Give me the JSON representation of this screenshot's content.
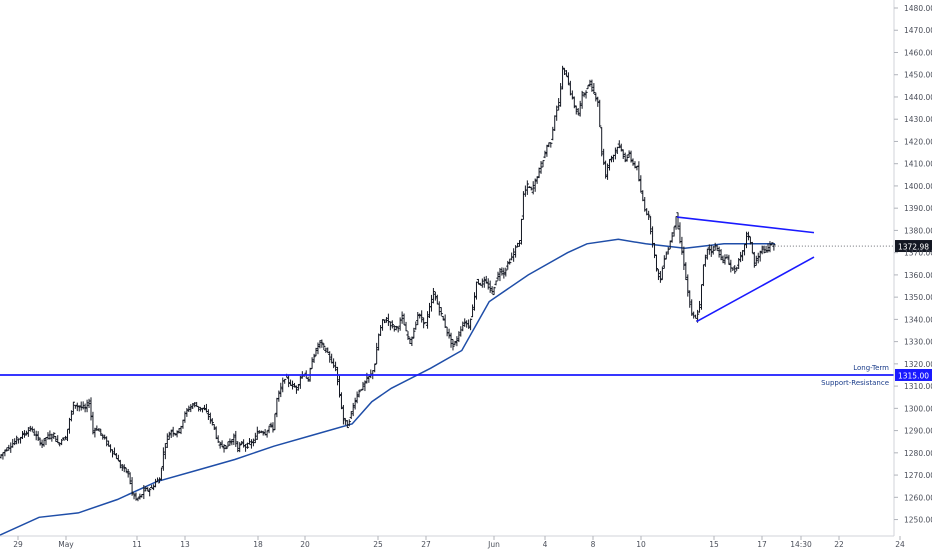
{
  "chart_data": {
    "type": "candlestick",
    "y_axis": {
      "min": 1245,
      "max": 1482,
      "ticks": [
        "1480.00",
        "1470.00",
        "1460.00",
        "1450.00",
        "1440.00",
        "1430.00",
        "1420.00",
        "1410.00",
        "1400.00",
        "1390.00",
        "1380.00",
        "1370.00",
        "1360.00",
        "1350.00",
        "1340.00",
        "1330.00",
        "1320.00",
        "1310.00",
        "1300.00",
        "1290.00",
        "1280.00",
        "1270.00",
        "1260.00",
        "1250.00"
      ],
      "tick_values": [
        1480,
        1470,
        1460,
        1450,
        1440,
        1430,
        1420,
        1410,
        1400,
        1390,
        1380,
        1370,
        1360,
        1350,
        1340,
        1330,
        1320,
        1310,
        1300,
        1290,
        1280,
        1270,
        1260,
        1250
      ],
      "last_price_label": "1372.98",
      "last_price": 1372.98,
      "level_label": "1315.00",
      "level": 1315
    },
    "x_axis": {
      "labels": [
        "29",
        "May",
        "11",
        "13",
        "18",
        "20",
        "25",
        "27",
        "Jun",
        "4",
        "8",
        "10",
        "15",
        "17",
        "14:30",
        "22",
        "24"
      ]
    },
    "colors": {
      "bars": "#131722",
      "moving_average": "#1f4ea8",
      "trendlines": "#1a1aff",
      "support_line": "#1a1aff",
      "last_price_bg": "#131722",
      "level_bg": "#1a1aff",
      "annotation_text": "#1a3c8a"
    },
    "annotation": {
      "line1": "Long-Term",
      "line2": "Support-Resistance"
    },
    "price_path": [
      [
        0,
        1278
      ],
      [
        2,
        1282
      ],
      [
        4,
        1285
      ],
      [
        6,
        1288
      ],
      [
        8,
        1291
      ],
      [
        10,
        1286
      ],
      [
        11,
        1284
      ],
      [
        12,
        1287
      ],
      [
        14,
        1288
      ],
      [
        15,
        1284
      ],
      [
        16,
        1286
      ],
      [
        17,
        1287
      ],
      [
        19,
        1302
      ],
      [
        20,
        1301
      ],
      [
        22,
        1300
      ],
      [
        23,
        1303
      ],
      [
        24,
        1290
      ],
      [
        25,
        1291
      ],
      [
        27,
        1286
      ],
      [
        28,
        1283
      ],
      [
        30,
        1278
      ],
      [
        31,
        1274
      ],
      [
        33,
        1271
      ],
      [
        34,
        1262
      ],
      [
        35,
        1259
      ],
      [
        36,
        1260
      ],
      [
        37,
        1263
      ],
      [
        39,
        1264
      ],
      [
        40,
        1267
      ],
      [
        41,
        1268
      ],
      [
        42,
        1280
      ],
      [
        43,
        1287
      ],
      [
        44,
        1290
      ],
      [
        45,
        1289
      ],
      [
        46,
        1290
      ],
      [
        47,
        1295
      ],
      [
        48,
        1299
      ],
      [
        49,
        1301
      ],
      [
        50,
        1302
      ],
      [
        51,
        1300
      ],
      [
        52,
        1300
      ],
      [
        53,
        1298
      ],
      [
        54,
        1295
      ],
      [
        55,
        1291
      ],
      [
        56,
        1284
      ],
      [
        57,
        1283
      ],
      [
        58,
        1283
      ],
      [
        59,
        1285
      ],
      [
        60,
        1287
      ],
      [
        61,
        1282
      ],
      [
        62,
        1284
      ],
      [
        63,
        1283
      ],
      [
        64,
        1284
      ],
      [
        65,
        1285
      ],
      [
        66,
        1289
      ],
      [
        67,
        1290
      ],
      [
        68,
        1289
      ],
      [
        69,
        1292
      ],
      [
        70,
        1291
      ],
      [
        71,
        1304
      ],
      [
        72,
        1309
      ],
      [
        73,
        1314
      ],
      [
        74,
        1312
      ],
      [
        75,
        1310
      ],
      [
        76,
        1309
      ],
      [
        77,
        1314
      ],
      [
        78,
        1316
      ],
      [
        79,
        1312
      ],
      [
        80,
        1322
      ],
      [
        81,
        1326
      ],
      [
        82,
        1330
      ],
      [
        83,
        1327
      ],
      [
        84,
        1325
      ],
      [
        85,
        1320
      ],
      [
        86,
        1318
      ],
      [
        87,
        1306
      ],
      [
        88,
        1295
      ],
      [
        89,
        1292
      ],
      [
        90,
        1298
      ],
      [
        91,
        1304
      ],
      [
        92,
        1308
      ],
      [
        93,
        1310
      ],
      [
        94,
        1313
      ],
      [
        95,
        1315
      ],
      [
        96,
        1320
      ],
      [
        97,
        1333
      ],
      [
        98,
        1339
      ],
      [
        99,
        1340
      ],
      [
        100,
        1338
      ],
      [
        101,
        1336
      ],
      [
        102,
        1337
      ],
      [
        103,
        1341
      ],
      [
        104,
        1334
      ],
      [
        105,
        1330
      ],
      [
        106,
        1335
      ],
      [
        107,
        1342
      ],
      [
        108,
        1340
      ],
      [
        109,
        1338
      ],
      [
        110,
        1345
      ],
      [
        111,
        1352
      ],
      [
        112,
        1347
      ],
      [
        113,
        1342
      ],
      [
        114,
        1337
      ],
      [
        115,
        1332
      ],
      [
        116,
        1328
      ],
      [
        117,
        1331
      ],
      [
        118,
        1336
      ],
      [
        119,
        1339
      ],
      [
        120,
        1337
      ],
      [
        121,
        1345
      ],
      [
        122,
        1357
      ],
      [
        123,
        1356
      ],
      [
        124,
        1357
      ],
      [
        125,
        1355
      ],
      [
        126,
        1352
      ],
      [
        127,
        1358
      ],
      [
        128,
        1362
      ],
      [
        129,
        1361
      ],
      [
        130,
        1365
      ],
      [
        131,
        1368
      ],
      [
        132,
        1372
      ],
      [
        133,
        1375
      ],
      [
        134,
        1396
      ],
      [
        135,
        1400
      ],
      [
        136,
        1398
      ],
      [
        137,
        1402
      ],
      [
        138,
        1407
      ],
      [
        139,
        1412
      ],
      [
        140,
        1418
      ],
      [
        141,
        1420
      ],
      [
        142,
        1432
      ],
      [
        143,
        1437
      ],
      [
        144,
        1452
      ],
      [
        145,
        1450
      ],
      [
        146,
        1442
      ],
      [
        147,
        1436
      ],
      [
        148,
        1432
      ],
      [
        149,
        1441
      ],
      [
        150,
        1443
      ],
      [
        151,
        1446
      ],
      [
        152,
        1442
      ],
      [
        153,
        1438
      ],
      [
        154,
        1415
      ],
      [
        155,
        1405
      ],
      [
        156,
        1412
      ],
      [
        157,
        1414
      ],
      [
        158,
        1418
      ],
      [
        159,
        1416
      ],
      [
        160,
        1412
      ],
      [
        161,
        1414
      ],
      [
        162,
        1410
      ],
      [
        163,
        1408
      ],
      [
        164,
        1397
      ],
      [
        165,
        1390
      ],
      [
        166,
        1386
      ],
      [
        167,
        1375
      ],
      [
        168,
        1362
      ],
      [
        169,
        1358
      ],
      [
        170,
        1368
      ],
      [
        171,
        1372
      ],
      [
        172,
        1378
      ],
      [
        173,
        1387
      ],
      [
        174,
        1375
      ],
      [
        175,
        1365
      ],
      [
        176,
        1352
      ],
      [
        177,
        1342
      ],
      [
        178,
        1340
      ],
      [
        179,
        1346
      ],
      [
        180,
        1364
      ],
      [
        181,
        1372
      ],
      [
        182,
        1371
      ],
      [
        183,
        1373
      ],
      [
        184,
        1370
      ],
      [
        185,
        1366
      ],
      [
        186,
        1368
      ],
      [
        187,
        1363
      ],
      [
        188,
        1362
      ],
      [
        189,
        1366
      ],
      [
        190,
        1370
      ],
      [
        191,
        1378
      ],
      [
        192,
        1375
      ],
      [
        193,
        1365
      ],
      [
        194,
        1368
      ],
      [
        195,
        1372
      ],
      [
        196,
        1370
      ],
      [
        197,
        1374
      ],
      [
        198,
        1373
      ]
    ],
    "ma_path": [
      [
        0,
        1243
      ],
      [
        10,
        1251
      ],
      [
        20,
        1253
      ],
      [
        30,
        1259
      ],
      [
        40,
        1267
      ],
      [
        50,
        1272
      ],
      [
        60,
        1277
      ],
      [
        70,
        1283
      ],
      [
        80,
        1288
      ],
      [
        90,
        1293
      ],
      [
        95,
        1303
      ],
      [
        100,
        1309
      ],
      [
        110,
        1318
      ],
      [
        118,
        1326
      ],
      [
        125,
        1348
      ],
      [
        135,
        1360
      ],
      [
        145,
        1370
      ],
      [
        150,
        1374
      ],
      [
        158,
        1376
      ],
      [
        165,
        1374
      ],
      [
        170,
        1373
      ],
      [
        175,
        1372
      ],
      [
        180,
        1373
      ],
      [
        185,
        1374
      ],
      [
        190,
        1374
      ],
      [
        195,
        1374
      ],
      [
        198,
        1374
      ]
    ],
    "trendlines": [
      {
        "name": "upper",
        "from": [
          173,
          1386
        ],
        "to": [
          208,
          1379
        ]
      },
      {
        "name": "lower",
        "from": [
          178,
          1339
        ],
        "to": [
          208,
          1368
        ]
      }
    ]
  }
}
